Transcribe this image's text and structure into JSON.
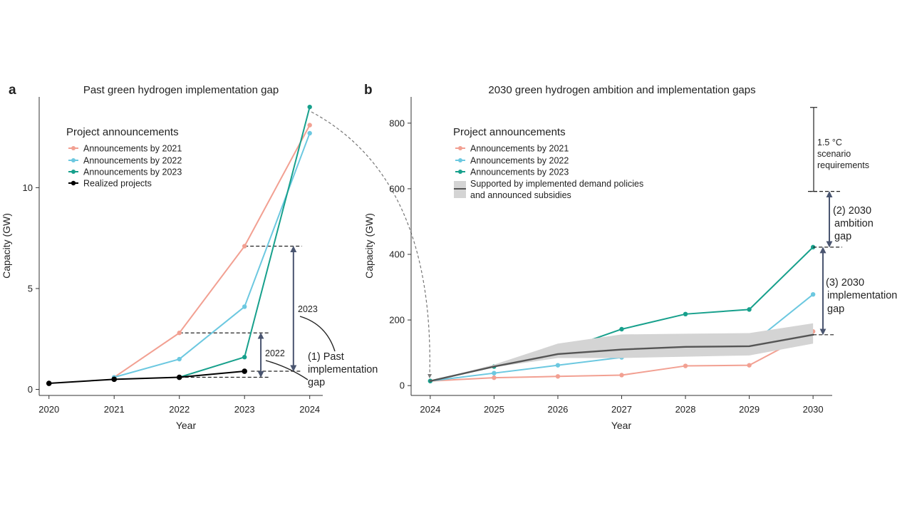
{
  "colors": {
    "announcements_2021": "#f2a092",
    "announcements_2022": "#6cc8e0",
    "announcements_2023": "#17a08c",
    "realized": "#000000",
    "supported": "#555555",
    "supported_band": "#d4d4d4",
    "gap_arrow": "#4a5570"
  },
  "chart_data": [
    {
      "type": "line",
      "panel_label": "a",
      "title": "Past green hydrogen implementation gap",
      "xlabel": "Year",
      "ylabel": "Capacity (GW)",
      "x": [
        2020,
        2021,
        2022,
        2023,
        2024
      ],
      "xlim": [
        2019.85,
        2024.2
      ],
      "ylim": [
        -0.3,
        14.5
      ],
      "xticks": [
        "2020",
        "2021",
        "2022",
        "2023",
        "2024"
      ],
      "yticks": [
        0,
        5,
        10
      ],
      "legend_title": "Project announcements",
      "legend_position": "top-left",
      "series": [
        {
          "name": "Announcements by 2021",
          "color_key": "announcements_2021",
          "x": [
            2021,
            2022,
            2023,
            2024
          ],
          "values": [
            0.6,
            2.8,
            7.1,
            13.1
          ]
        },
        {
          "name": "Announcements by 2022",
          "color_key": "announcements_2022",
          "x": [
            2021,
            2022,
            2023,
            2024
          ],
          "values": [
            0.6,
            1.5,
            4.1,
            12.7
          ]
        },
        {
          "name": "Announcements by 2023",
          "color_key": "announcements_2023",
          "x": [
            2022,
            2023,
            2024
          ],
          "values": [
            0.6,
            1.6,
            14.0
          ]
        },
        {
          "name": "Realized projects",
          "color_key": "realized",
          "x": [
            2020,
            2021,
            2022,
            2023
          ],
          "values": [
            0.3,
            0.5,
            0.6,
            0.9
          ]
        }
      ],
      "annotations": {
        "gap_2023_label": "2023",
        "gap_2022_label": "2022",
        "gap_text_line1": "(1) Past",
        "gap_text_line2": "implementation",
        "gap_text_line3": "gap"
      }
    },
    {
      "type": "line",
      "panel_label": "b",
      "title": "2030 green hydrogen ambition and implementation gaps",
      "xlabel": "Year",
      "ylabel": "Capacity (GW)",
      "x": [
        2024,
        2025,
        2026,
        2027,
        2028,
        2029,
        2030
      ],
      "xlim": [
        2023.7,
        2030.3
      ],
      "ylim": [
        -30,
        880
      ],
      "xticks": [
        "2024",
        "2025",
        "2026",
        "2027",
        "2028",
        "2029",
        "2030"
      ],
      "yticks": [
        0,
        200,
        400,
        600,
        800
      ],
      "legend_title": "Project announcements",
      "legend_position": "top-left",
      "series": [
        {
          "name": "Announcements by 2021",
          "color_key": "announcements_2021",
          "x": [
            2024,
            2025,
            2026,
            2027,
            2028,
            2029,
            2030
          ],
          "values": [
            14,
            24,
            28,
            32,
            60,
            62,
            165
          ]
        },
        {
          "name": "Announcements by 2022",
          "color_key": "announcements_2022",
          "x": [
            2024,
            2025,
            2026,
            2027,
            2028,
            2029,
            2030
          ],
          "values": [
            14,
            38,
            62,
            86,
            116,
            122,
            278
          ]
        },
        {
          "name": "Announcements by 2023",
          "color_key": "announcements_2023",
          "x": [
            2024,
            2025,
            2026,
            2027,
            2028,
            2029,
            2030
          ],
          "values": [
            14,
            58,
            104,
            172,
            218,
            232,
            422
          ]
        },
        {
          "name": "Supported by implemented demand policies and announced subsidies",
          "color_key": "supported",
          "x": [
            2024,
            2025,
            2026,
            2027,
            2028,
            2029,
            2030
          ],
          "values": [
            14,
            58,
            96,
            110,
            118,
            120,
            155
          ],
          "band_lower": [
            14,
            56,
            84,
            84,
            88,
            92,
            128
          ],
          "band_upper": [
            14,
            64,
            128,
            156,
            158,
            160,
            190
          ]
        }
      ],
      "legend_entries": [
        {
          "text": "Announcements by 2021",
          "color_key": "announcements_2021"
        },
        {
          "text": "Announcements by 2022",
          "color_key": "announcements_2022"
        },
        {
          "text": "Announcements by 2023",
          "color_key": "announcements_2023"
        },
        {
          "text_line1": "Supported by implemented demand policies",
          "text_line2": "and announced subsidies",
          "color_key": "supported"
        }
      ],
      "scenario_range": [
        592,
        848
      ],
      "annotations": {
        "scenario_line1": "1.5 °C",
        "scenario_line2": "scenario",
        "scenario_line3": "requirements",
        "ambition_line1": "(2) 2030",
        "ambition_line2": "ambition",
        "ambition_line3": "gap",
        "impl_line1": "(3) 2030",
        "impl_line2": "implementation",
        "impl_line3": "gap"
      }
    }
  ]
}
